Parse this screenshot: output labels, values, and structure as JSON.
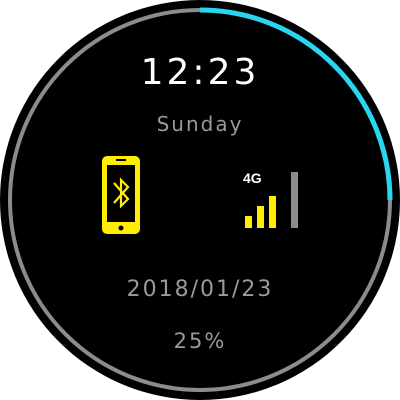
{
  "watch": {
    "time": "12:23",
    "day": "Sunday",
    "date": "2018/01/23",
    "battery": "25%"
  },
  "progress_ring": {
    "fraction": 0.25,
    "fill_color": "#29d6f0",
    "track_color": "#8c8c8c"
  },
  "connection": {
    "icon": "bluetooth-phone-icon",
    "color": "#ffee00"
  },
  "signal": {
    "network_label": "4G",
    "bars_total": 4,
    "bars_active": 3,
    "active_color": "#ffee00",
    "inactive_color": "#8c8c8c"
  }
}
